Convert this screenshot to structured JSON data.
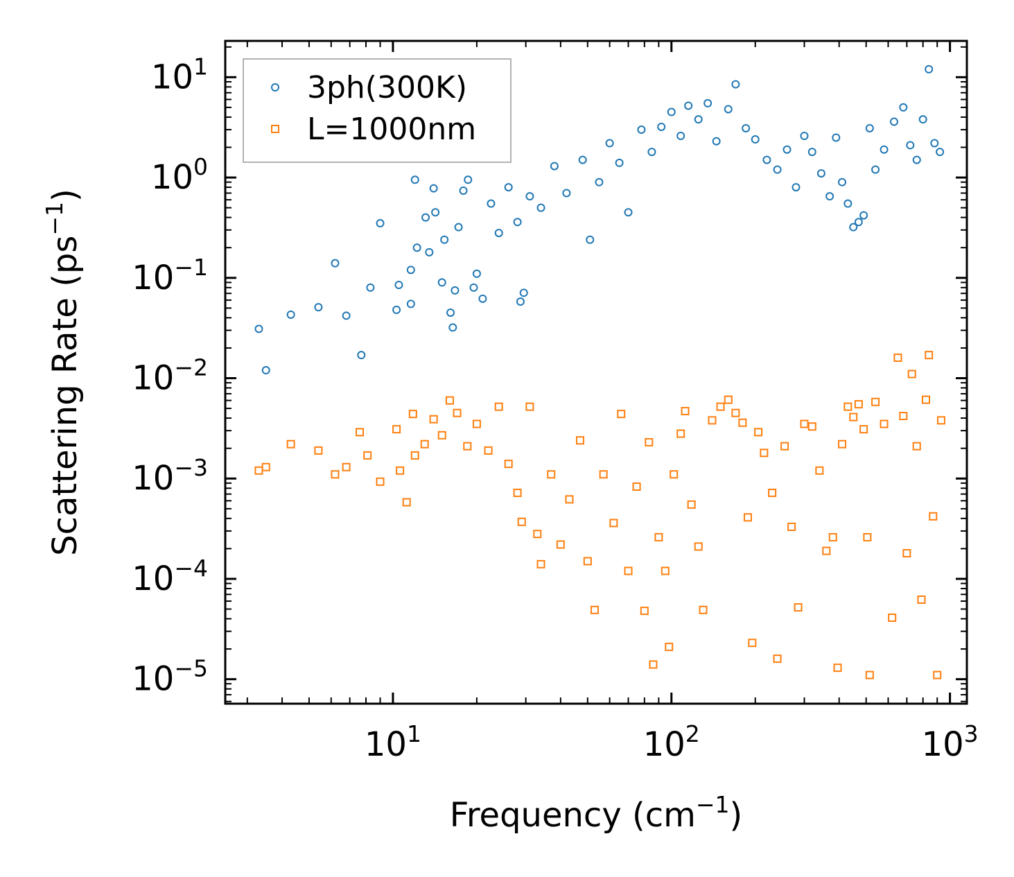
{
  "chart_data": {
    "type": "scatter",
    "title": "",
    "xlabel": "Frequency (cm",
    "xlabel_sup": "−1",
    "xlabel_end": ")",
    "ylabel": "Scattering Rate (ps",
    "ylabel_sup": "−1",
    "ylabel_end": ")",
    "xscale": "log",
    "yscale": "log",
    "xlim": [
      2.5,
      1150
    ],
    "ylim": [
      5.7e-06,
      23
    ],
    "legend_position": "top-left",
    "x_ticks": [
      {
        "value": 10,
        "base": "10",
        "exp": "1"
      },
      {
        "value": 100,
        "base": "10",
        "exp": "2"
      },
      {
        "value": 1000,
        "base": "10",
        "exp": "3"
      }
    ],
    "y_ticks": [
      {
        "value": 10,
        "base": "10",
        "exp": "1"
      },
      {
        "value": 1,
        "base": "10",
        "exp": "0"
      },
      {
        "value": 0.1,
        "base": "10",
        "exp": "−1"
      },
      {
        "value": 0.01,
        "base": "10",
        "exp": "−2"
      },
      {
        "value": 0.001,
        "base": "10",
        "exp": "−3"
      },
      {
        "value": 0.0001,
        "base": "10",
        "exp": "−4"
      },
      {
        "value": 1e-05,
        "base": "10",
        "exp": "−5"
      }
    ],
    "series": [
      {
        "name": "3ph(300K)",
        "marker": "circle",
        "color": "#1f77b4",
        "points": [
          [
            3.3,
            0.031
          ],
          [
            3.5,
            0.012
          ],
          [
            4.3,
            0.043
          ],
          [
            5.4,
            0.051
          ],
          [
            6.2,
            0.14
          ],
          [
            6.8,
            0.042
          ],
          [
            7.7,
            0.017
          ],
          [
            8.3,
            0.08
          ],
          [
            9.0,
            0.35
          ],
          [
            10.3,
            0.048
          ],
          [
            10.5,
            0.085
          ],
          [
            11.6,
            0.055
          ],
          [
            11.6,
            0.12
          ],
          [
            12.0,
            0.95
          ],
          [
            12.2,
            0.2
          ],
          [
            13.1,
            0.4
          ],
          [
            13.5,
            0.18
          ],
          [
            14.0,
            0.78
          ],
          [
            14.2,
            0.45
          ],
          [
            15.0,
            0.09
          ],
          [
            15.3,
            0.24
          ],
          [
            16.1,
            0.045
          ],
          [
            16.4,
            0.032
          ],
          [
            16.7,
            0.075
          ],
          [
            17.2,
            0.32
          ],
          [
            17.9,
            0.74
          ],
          [
            18.6,
            0.95
          ],
          [
            19.5,
            0.08
          ],
          [
            20.0,
            0.11
          ],
          [
            21.0,
            0.062
          ],
          [
            22.5,
            0.55
          ],
          [
            24.0,
            0.28
          ],
          [
            26.0,
            0.8
          ],
          [
            28.0,
            0.36
          ],
          [
            28.7,
            0.058
          ],
          [
            29.5,
            0.071
          ],
          [
            31.0,
            0.65
          ],
          [
            34.0,
            0.5
          ],
          [
            38.0,
            1.3
          ],
          [
            42.0,
            0.7
          ],
          [
            48.0,
            1.5
          ],
          [
            51.0,
            0.24
          ],
          [
            55.0,
            0.9
          ],
          [
            60.0,
            2.2
          ],
          [
            65.0,
            1.4
          ],
          [
            70.0,
            0.45
          ],
          [
            78.0,
            3.0
          ],
          [
            85.0,
            1.8
          ],
          [
            92.0,
            3.2
          ],
          [
            100.0,
            4.5
          ],
          [
            108.0,
            2.6
          ],
          [
            115.0,
            5.2
          ],
          [
            125.0,
            3.8
          ],
          [
            135.0,
            5.5
          ],
          [
            145.0,
            2.3
          ],
          [
            160.0,
            4.8
          ],
          [
            170.0,
            8.5
          ],
          [
            185.0,
            3.1
          ],
          [
            200.0,
            2.4
          ],
          [
            220.0,
            1.5
          ],
          [
            240.0,
            1.2
          ],
          [
            260.0,
            1.9
          ],
          [
            280.0,
            0.8
          ],
          [
            300.0,
            2.6
          ],
          [
            320.0,
            1.8
          ],
          [
            345.0,
            1.1
          ],
          [
            370.0,
            0.65
          ],
          [
            390.0,
            2.5
          ],
          [
            410.0,
            0.9
          ],
          [
            430.0,
            0.55
          ],
          [
            450.0,
            0.32
          ],
          [
            470.0,
            0.36
          ],
          [
            490.0,
            0.42
          ],
          [
            515.0,
            3.1
          ],
          [
            540.0,
            1.2
          ],
          [
            580.0,
            1.9
          ],
          [
            630.0,
            3.6
          ],
          [
            680.0,
            5.0
          ],
          [
            720.0,
            2.1
          ],
          [
            760.0,
            1.5
          ],
          [
            800.0,
            3.8
          ],
          [
            840.0,
            12.0
          ],
          [
            880.0,
            2.2
          ],
          [
            920.0,
            1.8
          ]
        ]
      },
      {
        "name": "L=1000nm",
        "marker": "square",
        "color": "#ff7f0e",
        "points": [
          [
            3.3,
            0.0012
          ],
          [
            3.5,
            0.0013
          ],
          [
            4.3,
            0.0022
          ],
          [
            5.4,
            0.0019
          ],
          [
            6.2,
            0.0011
          ],
          [
            6.8,
            0.0013
          ],
          [
            7.6,
            0.0029
          ],
          [
            8.1,
            0.0017
          ],
          [
            9.0,
            0.00093
          ],
          [
            10.3,
            0.0031
          ],
          [
            10.6,
            0.0012
          ],
          [
            11.2,
            0.00058
          ],
          [
            11.8,
            0.0044
          ],
          [
            12.0,
            0.0017
          ],
          [
            13.0,
            0.0022
          ],
          [
            14.0,
            0.0039
          ],
          [
            15.0,
            0.0027
          ],
          [
            16.0,
            0.006
          ],
          [
            17.0,
            0.0045
          ],
          [
            18.5,
            0.0021
          ],
          [
            20.0,
            0.0035
          ],
          [
            22.0,
            0.0019
          ],
          [
            24.0,
            0.0052
          ],
          [
            26.0,
            0.0014
          ],
          [
            28.0,
            0.00072
          ],
          [
            29.0,
            0.00037
          ],
          [
            31.0,
            0.0052
          ],
          [
            33.0,
            0.00028
          ],
          [
            34.0,
            0.00014
          ],
          [
            37.0,
            0.0011
          ],
          [
            40.0,
            0.00022
          ],
          [
            43.0,
            0.00062
          ],
          [
            47.0,
            0.0024
          ],
          [
            50.0,
            0.00015
          ],
          [
            53.0,
            4.9e-05
          ],
          [
            57.0,
            0.0011
          ],
          [
            62.0,
            0.00036
          ],
          [
            66.0,
            0.0044
          ],
          [
            70.0,
            0.00012
          ],
          [
            75.0,
            0.00083
          ],
          [
            80.0,
            4.8e-05
          ],
          [
            83.0,
            0.0023
          ],
          [
            86.0,
            1.4e-05
          ],
          [
            90.0,
            0.00026
          ],
          [
            95.0,
            0.00012
          ],
          [
            98.0,
            2.1e-05
          ],
          [
            102.0,
            0.0011
          ],
          [
            108.0,
            0.0028
          ],
          [
            112.0,
            0.0047
          ],
          [
            118.0,
            0.00055
          ],
          [
            125.0,
            0.00021
          ],
          [
            130.0,
            4.9e-05
          ],
          [
            140.0,
            0.0038
          ],
          [
            150.0,
            0.0052
          ],
          [
            160.0,
            0.0061
          ],
          [
            170.0,
            0.0045
          ],
          [
            180.0,
            0.0036
          ],
          [
            188.0,
            0.00041
          ],
          [
            195.0,
            2.3e-05
          ],
          [
            205.0,
            0.0029
          ],
          [
            215.0,
            0.0018
          ],
          [
            230.0,
            0.00072
          ],
          [
            240.0,
            1.6e-05
          ],
          [
            255.0,
            0.0021
          ],
          [
            270.0,
            0.00033
          ],
          [
            285.0,
            5.2e-05
          ],
          [
            300.0,
            0.0035
          ],
          [
            320.0,
            0.0033
          ],
          [
            340.0,
            0.0012
          ],
          [
            360.0,
            0.00019
          ],
          [
            380.0,
            0.00026
          ],
          [
            395.0,
            1.3e-05
          ],
          [
            410.0,
            0.0022
          ],
          [
            430.0,
            0.0052
          ],
          [
            450.0,
            0.0041
          ],
          [
            470.0,
            0.0055
          ],
          [
            490.0,
            0.0031
          ],
          [
            505.0,
            0.00026
          ],
          [
            515.0,
            1.1e-05
          ],
          [
            540.0,
            0.0058
          ],
          [
            580.0,
            0.0035
          ],
          [
            620.0,
            4.1e-05
          ],
          [
            650.0,
            0.016
          ],
          [
            680.0,
            0.0042
          ],
          [
            700.0,
            0.00018
          ],
          [
            730.0,
            0.011
          ],
          [
            760.0,
            0.0021
          ],
          [
            790.0,
            6.2e-05
          ],
          [
            820.0,
            0.0061
          ],
          [
            840.0,
            0.017
          ],
          [
            870.0,
            0.00042
          ],
          [
            900.0,
            1.1e-05
          ],
          [
            930.0,
            0.0038
          ]
        ]
      }
    ]
  }
}
